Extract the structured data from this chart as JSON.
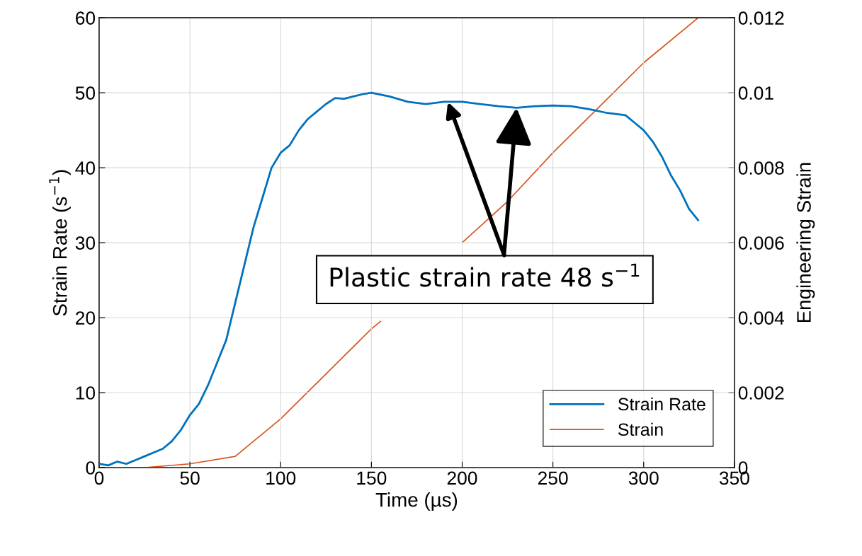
{
  "chart_data": {
    "type": "line",
    "xlabel": "Time (µs)",
    "ylabel": "Strain Rate (s$^{−1}$)",
    "y2label": "Engineering Strain",
    "xlim": [
      0,
      350
    ],
    "xticks": [
      0,
      50,
      100,
      150,
      200,
      250,
      300,
      350
    ],
    "ylim": [
      0,
      60
    ],
    "yticks": [
      0,
      10,
      20,
      30,
      40,
      50,
      60
    ],
    "y2lim": [
      0,
      0.012
    ],
    "y2ticks": [
      0,
      0.002,
      0.004,
      0.006,
      0.008,
      0.01,
      0.012
    ],
    "grid": true,
    "legend": "bottom right",
    "line_style": "solid",
    "series": [
      {
        "name": "Strain Rate",
        "color": "#0072bd",
        "x": [
          0,
          5,
          10,
          15,
          20,
          25,
          30,
          35,
          40,
          45,
          50,
          55,
          60,
          65,
          70,
          75,
          80,
          85,
          90,
          95,
          100,
          105,
          110,
          115,
          120,
          125,
          130,
          135,
          140,
          145,
          150,
          160,
          170,
          180,
          190,
          200,
          210,
          220,
          230,
          240,
          250,
          260,
          270,
          280,
          290,
          295,
          300,
          305,
          310,
          315,
          320,
          325,
          330
        ],
        "values": [
          0.5,
          0.3,
          0.8,
          0.5,
          1,
          1.5,
          2,
          2.5,
          3.5,
          5,
          7,
          8.5,
          11,
          14,
          17,
          22,
          27,
          32,
          36,
          40,
          42,
          43,
          45,
          46.5,
          47.5,
          48.5,
          49.3,
          49.2,
          49.5,
          49.8,
          50,
          49.5,
          48.8,
          48.5,
          48.8,
          48.8,
          48.5,
          48.2,
          48,
          48.2,
          48.3,
          48.2,
          47.8,
          47.3,
          47,
          46,
          45,
          43.5,
          41.5,
          39,
          37,
          34.5,
          33
        ]
      },
      {
        "name": "Strain",
        "color": "#d95319",
        "axis": "y2",
        "x": [
          0,
          25,
          50,
          75,
          100,
          125,
          150,
          155,
          175,
          200,
          225,
          250,
          275,
          300,
          330
        ],
        "values": [
          0,
          0,
          0.0001,
          0.0003,
          0.0013,
          0.0025,
          0.0037,
          0.0039,
          null,
          0.006,
          0.0071,
          0.0084,
          0.0096,
          0.0108,
          0.012
        ]
      }
    ],
    "annotations": [
      {
        "text": "Plastic strain rate 48 s$^{−1}$",
        "x": 230,
        "y": 48
      }
    ]
  }
}
